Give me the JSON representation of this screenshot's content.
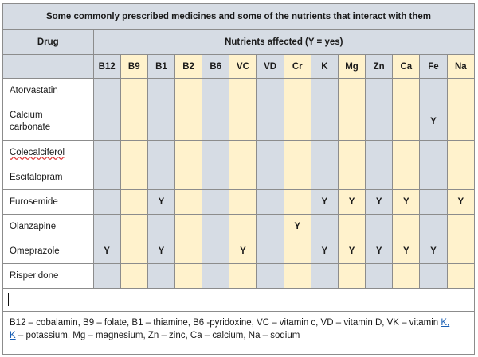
{
  "title": "Some commonly prescribed medicines and some of the nutrients that interact with them",
  "drug_header": "Drug",
  "nutrients_header": "Nutrients affected (Y = yes)",
  "nutrients": [
    "B12",
    "B9",
    "B1",
    "B2",
    "B6",
    "VC",
    "VD",
    "Cr",
    "K",
    "Mg",
    "Zn",
    "Ca",
    "Fe",
    "Na"
  ],
  "rows": [
    {
      "drug": "Atorvastatin",
      "values": [
        "",
        "",
        "",
        "",
        "",
        "",
        "",
        "",
        "",
        "",
        "",
        "",
        "",
        ""
      ]
    },
    {
      "drug": "Calcium carbonate",
      "values": [
        "",
        "",
        "",
        "",
        "",
        "",
        "",
        "",
        "",
        "",
        "",
        "",
        "Y",
        ""
      ]
    },
    {
      "drug": "Colecalciferol",
      "values": [
        "",
        "",
        "",
        "",
        "",
        "",
        "",
        "",
        "",
        "",
        "",
        "",
        "",
        ""
      ]
    },
    {
      "drug": "Escitalopram",
      "values": [
        "",
        "",
        "",
        "",
        "",
        "",
        "",
        "",
        "",
        "",
        "",
        "",
        "",
        ""
      ]
    },
    {
      "drug": "Furosemide",
      "values": [
        "",
        "",
        "Y",
        "",
        "",
        "",
        "",
        "",
        "Y",
        "Y",
        "Y",
        "Y",
        "",
        "Y"
      ]
    },
    {
      "drug": "Olanzapine",
      "values": [
        "",
        "",
        "",
        "",
        "",
        "",
        "",
        "Y",
        "",
        "",
        "",
        "",
        "",
        ""
      ]
    },
    {
      "drug": "Omeprazole",
      "values": [
        "Y",
        "",
        "Y",
        "",
        "",
        "Y",
        "",
        "",
        "Y",
        "Y",
        "Y",
        "Y",
        "Y",
        ""
      ]
    },
    {
      "drug": "Risperidone",
      "values": [
        "",
        "",
        "",
        "",
        "",
        "",
        "",
        "",
        "",
        "",
        "",
        "",
        "",
        ""
      ]
    }
  ],
  "legend_line1": "B12 – cobalamin, B9 – folate, B1 – thiamine, B6 -pyridoxine, VC – vitamin c, VD – vitamin D, VK – vitamin ",
  "legend_link1": "K,",
  "legend_link2": "K",
  "legend_line2": " – potassium, Mg – magnesium, Zn – zinc, Ca – calcium, Na – sodium",
  "colors": {
    "header_blue": "#d6dce4",
    "cream": "#fff2cc",
    "border": "#8c8c8c"
  }
}
